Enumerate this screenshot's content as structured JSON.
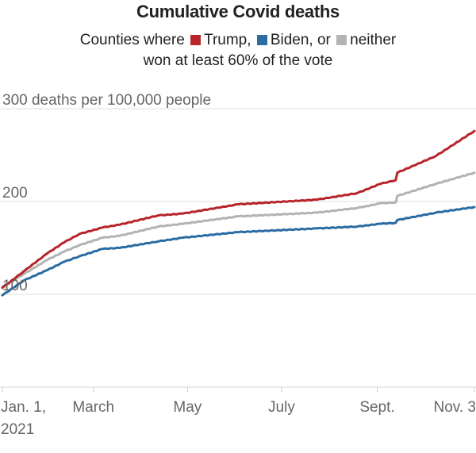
{
  "chart_data": {
    "type": "line",
    "title": "Cumulative Covid deaths",
    "subtitle": {
      "prefix": "Counties where",
      "line2": "won at least 60% of the vote"
    },
    "ylabel": "deaths per 100,000 people",
    "ylim": [
      0,
      300
    ],
    "y_ticks": [
      {
        "value": 100,
        "label": "100"
      },
      {
        "value": 200,
        "label": "200"
      },
      {
        "value": 300,
        "label": "300 deaths per 100,000 people"
      }
    ],
    "x_unit": "days since Jan. 1, 2021",
    "xlim": [
      0,
      306
    ],
    "x_ticks": [
      {
        "day": 0,
        "label": "Jan. 1,",
        "label2": "2021"
      },
      {
        "day": 59,
        "label": "March"
      },
      {
        "day": 120,
        "label": "May"
      },
      {
        "day": 181,
        "label": "July"
      },
      {
        "day": 243,
        "label": "Sept."
      },
      {
        "day": 306,
        "label": "Nov. 3"
      }
    ],
    "grid": true,
    "legend_placement": "top-center (inline in subtitle)",
    "series": [
      {
        "name": "Trump",
        "legend_label": "Trump,",
        "color": "#b7242a",
        "points": [
          [
            0,
            107
          ],
          [
            14,
            125
          ],
          [
            29,
            144
          ],
          [
            40,
            156
          ],
          [
            50,
            165
          ],
          [
            65,
            172
          ],
          [
            76,
            175
          ],
          [
            101,
            185
          ],
          [
            117,
            187
          ],
          [
            153,
            197
          ],
          [
            204,
            202
          ],
          [
            230,
            209
          ],
          [
            245,
            219
          ],
          [
            255,
            223
          ],
          [
            256,
            231
          ],
          [
            281,
            249
          ],
          [
            306,
            276
          ]
        ]
      },
      {
        "name": "Biden",
        "legend_label": "Biden, or",
        "color": "#2b6ca3",
        "points": [
          [
            0,
            99
          ],
          [
            14,
            115
          ],
          [
            29,
            126
          ],
          [
            40,
            135
          ],
          [
            50,
            141
          ],
          [
            65,
            149
          ],
          [
            76,
            150
          ],
          [
            101,
            157
          ],
          [
            117,
            161
          ],
          [
            153,
            167
          ],
          [
            204,
            171
          ],
          [
            230,
            173
          ],
          [
            245,
            176
          ],
          [
            255,
            177
          ],
          [
            256,
            180
          ],
          [
            281,
            188
          ],
          [
            306,
            194
          ]
        ]
      },
      {
        "name": "neither",
        "legend_label": "neither",
        "color": "#b3b3b3",
        "points": [
          [
            0,
            108
          ],
          [
            14,
            122
          ],
          [
            29,
            137
          ],
          [
            40,
            146
          ],
          [
            50,
            153
          ],
          [
            65,
            161
          ],
          [
            76,
            163
          ],
          [
            101,
            173
          ],
          [
            117,
            176
          ],
          [
            153,
            184
          ],
          [
            204,
            188
          ],
          [
            230,
            193
          ],
          [
            245,
            198
          ],
          [
            255,
            199
          ],
          [
            256,
            206
          ],
          [
            281,
            219
          ],
          [
            306,
            231
          ]
        ]
      }
    ]
  }
}
